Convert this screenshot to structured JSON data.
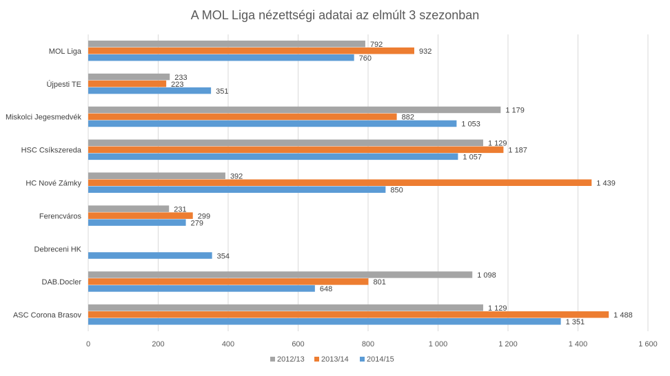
{
  "chart_data": {
    "type": "bar",
    "orientation": "horizontal",
    "title": "A MOL Liga nézettségi adatai az elmúlt 3 szezonban",
    "xlabel": "",
    "ylabel": "",
    "xlim": [
      0,
      1600
    ],
    "x_ticks": [
      0,
      200,
      400,
      600,
      800,
      1000,
      1200,
      1400,
      1600
    ],
    "x_tick_labels": [
      "0",
      "200",
      "400",
      "600",
      "800",
      "1 000",
      "1 200",
      "1 400",
      "1 600"
    ],
    "grid": true,
    "legend_position": "bottom",
    "categories": [
      "MOL Liga",
      "Újpesti TE",
      "Miskolci Jegesmedvék",
      "HSC Csíkszereda",
      "HC Nové Zámky",
      "Ferencváros",
      "Debreceni HK",
      "DAB.Docler",
      "ASC Corona Brasov"
    ],
    "series": [
      {
        "name": "2012/13",
        "color": "#a5a5a5",
        "values": [
          792,
          233,
          1179,
          1129,
          392,
          231,
          null,
          1098,
          1129
        ],
        "labels": [
          "792",
          "233",
          "1 179",
          "1 129",
          "392",
          "231",
          "",
          "1 098",
          "1 129"
        ]
      },
      {
        "name": "2013/14",
        "color": "#ed7d31",
        "values": [
          932,
          223,
          882,
          1187,
          1439,
          299,
          null,
          801,
          1488
        ],
        "labels": [
          "932",
          "223",
          "882",
          "1 187",
          "1 439",
          "299",
          "",
          "801",
          "1 488"
        ]
      },
      {
        "name": "2014/15",
        "color": "#5b9bd5",
        "values": [
          760,
          351,
          1053,
          1057,
          850,
          279,
          354,
          648,
          1351
        ],
        "labels": [
          "760",
          "351",
          "1 053",
          "1 057",
          "850",
          "279",
          "354",
          "648",
          "1 351"
        ]
      }
    ]
  }
}
